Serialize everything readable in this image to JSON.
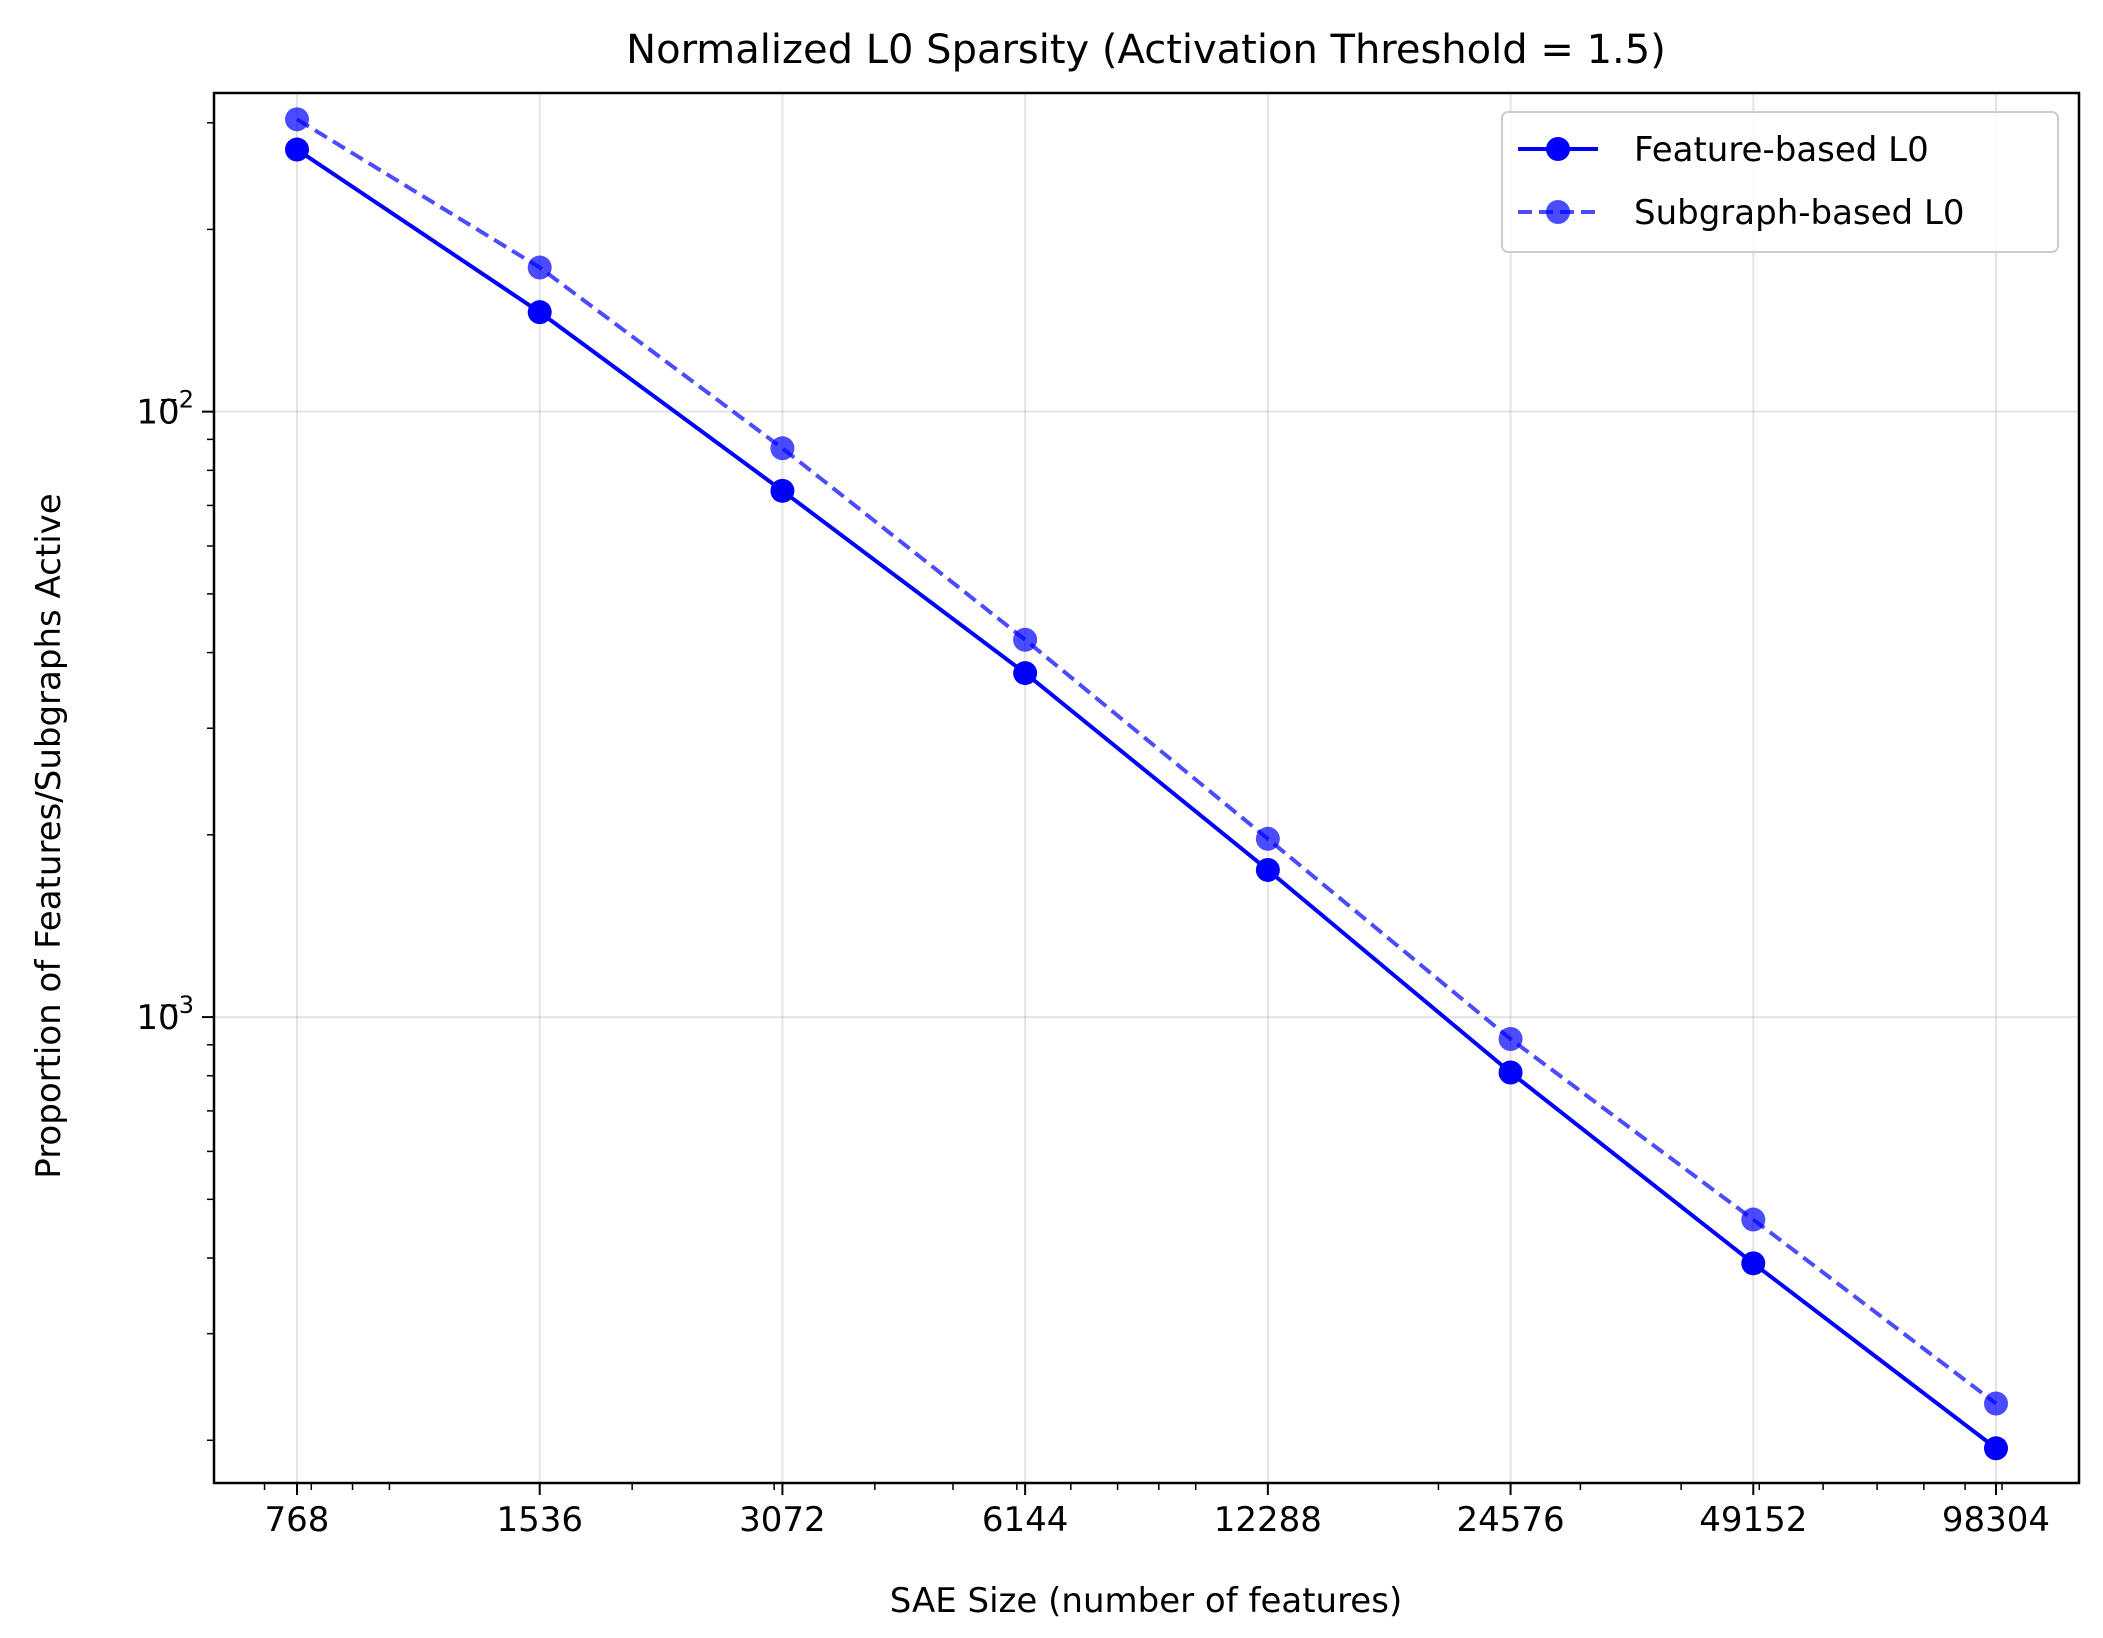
{
  "chart_data": {
    "type": "line",
    "title": "Normalized L0 Sparsity (Activation Threshold = 1.5)",
    "xlabel": "SAE Size (number of features)",
    "ylabel": "Proportion of Features/Subgraphs Active",
    "x_scale": "log2",
    "y_scale": "log10",
    "x": [
      768,
      1536,
      3072,
      6144,
      12288,
      24576,
      49152,
      98304
    ],
    "x_tick_labels": [
      "768",
      "1536",
      "3072",
      "6144",
      "12288",
      "24576",
      "49152",
      "98304"
    ],
    "y_tick_labels": [
      {
        "value": 0.01,
        "base": "10",
        "exp": "−2"
      },
      {
        "value": 0.001,
        "base": "10",
        "exp": "−3"
      }
    ],
    "ylim": [
      0.00017,
      0.0336
    ],
    "grid": true,
    "legend_position": "top-right",
    "series": [
      {
        "name": "Feature-based L0",
        "style": "solid",
        "color": "#0000ff",
        "opacity": 1.0,
        "values": [
          0.0271,
          0.0146,
          0.0074,
          0.0037,
          0.00175,
          0.00081,
          0.000392,
          0.000194
        ]
      },
      {
        "name": "Subgraph-based L0",
        "style": "dashed",
        "color": "#0000ff",
        "opacity": 0.7,
        "values": [
          0.0304,
          0.0173,
          0.0087,
          0.0042,
          0.00197,
          0.00092,
          0.000463,
          0.00023
        ]
      }
    ]
  }
}
